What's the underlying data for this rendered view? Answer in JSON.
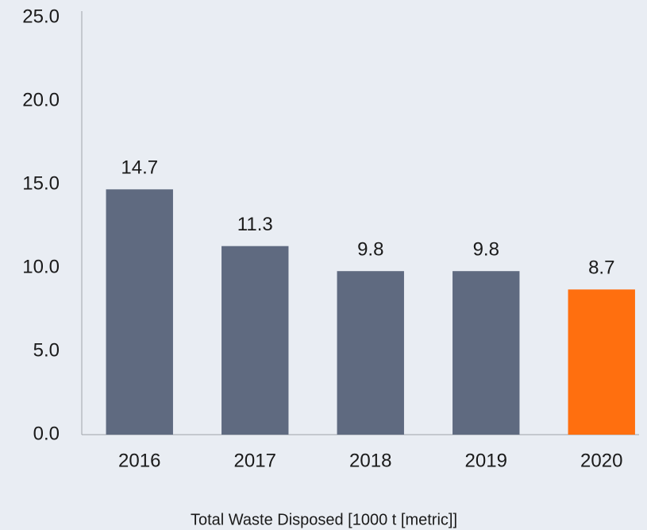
{
  "chart_data": {
    "type": "bar",
    "x_label": "Total Waste Disposed [1000 t [metric]]",
    "categories": [
      "2016",
      "2017",
      "2018",
      "2019",
      "2020"
    ],
    "values": [
      14.7,
      11.3,
      9.8,
      9.8,
      8.7
    ],
    "colors": [
      "#5f6a80",
      "#5f6a80",
      "#5f6a80",
      "#5f6a80",
      "#ff6f0f"
    ],
    "ylim": [
      0,
      25
    ],
    "yticks": [
      {
        "value": 0,
        "label": "0.0"
      },
      {
        "value": 5,
        "label": "5.0"
      },
      {
        "value": 10,
        "label": "10.0"
      },
      {
        "value": 15,
        "label": "15.0"
      },
      {
        "value": 20,
        "label": "20.0"
      },
      {
        "value": 25,
        "label": "25.0"
      }
    ],
    "grid": false
  }
}
